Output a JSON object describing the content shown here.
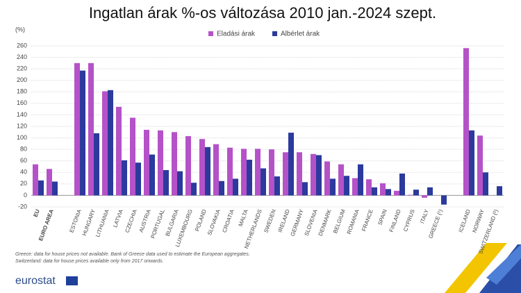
{
  "chart_data": {
    "type": "bar",
    "title": "Ingatlan árak %-os változása 2010 jan.-2024 szept.",
    "y_label": "(%)",
    "categories": [
      "EU",
      "EURO AREA",
      null,
      "ESTONIA",
      "HUNGARY",
      "LITHUANIA",
      "LATVIA",
      "CZECHIA",
      "AUSTRIA",
      "PORTUGAL",
      "BULGARIA",
      "LUXEMBOURG",
      "POLAND",
      "SLOVAKIA",
      "CROATIA",
      "MALTA",
      "NETHERLANDS",
      "SWEDEN",
      "IRELAND",
      "GERMANY",
      "SLOVENIA",
      "DENMARK",
      "BELGIUM",
      "ROMANIA",
      "FRANCE",
      "SPAIN",
      "FINLAND",
      "CYPRUS",
      "ITALY",
      "GREECE (¹)",
      null,
      "ICELAND",
      "NORWAY",
      "SWITZERLAND (²)"
    ],
    "series": [
      {
        "name": "Eladási árak",
        "color": "#b552c8",
        "values": [
          54,
          46,
          null,
          230,
          230,
          181,
          154,
          135,
          114,
          113,
          110,
          103,
          98,
          89,
          83,
          81,
          81,
          80,
          75,
          75,
          72,
          59,
          54,
          30,
          28,
          21,
          8,
          1,
          -4,
          null,
          null,
          256,
          104,
          null
        ]
      },
      {
        "name": "Albérlet árak",
        "color": "#2b3a9c",
        "values": [
          26,
          24,
          null,
          217,
          108,
          183,
          61,
          57,
          71,
          44,
          42,
          22,
          84,
          25,
          29,
          62,
          47,
          33,
          109,
          23,
          70,
          29,
          34,
          54,
          14,
          11,
          38,
          10,
          14,
          -16,
          null,
          113,
          40,
          16
        ]
      }
    ],
    "ylim": [
      -20,
      260
    ],
    "yticks": [
      -20,
      0,
      20,
      40,
      60,
      80,
      100,
      120,
      140,
      160,
      180,
      200,
      220,
      240,
      260
    ],
    "grid": true,
    "legend": "top",
    "notes": [
      "Greece: data for house prices not available. Bank of Greece data used to estimate the European aggregates.",
      "Switzerland: data for house prices available only from 2017 onwards."
    ],
    "source": "eurostat"
  }
}
